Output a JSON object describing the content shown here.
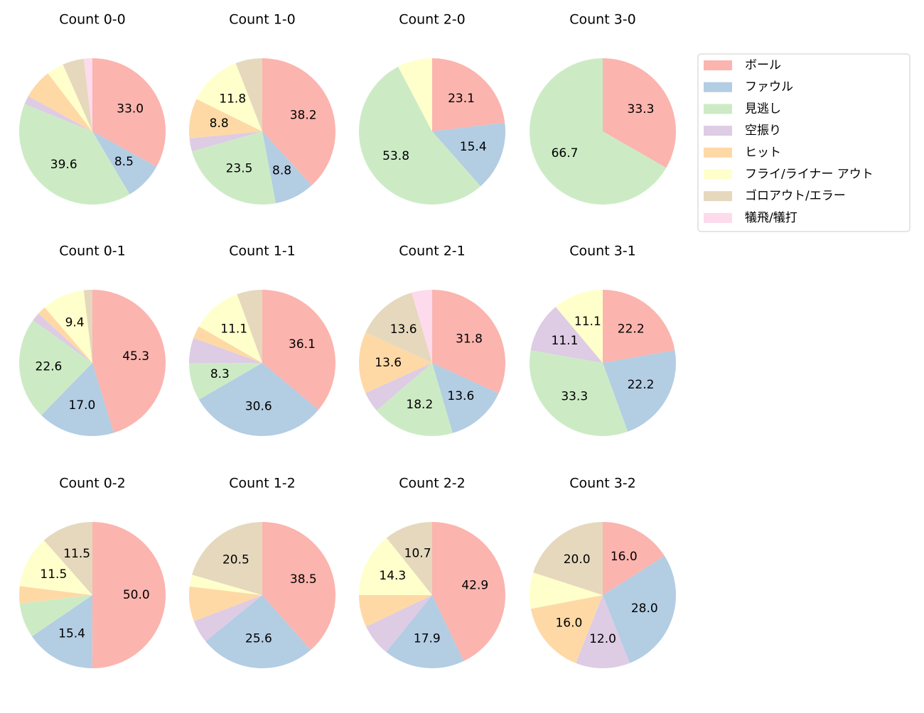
{
  "legend": {
    "labels": [
      "ボール",
      "ファウル",
      "見逃し",
      "空振り",
      "ヒット",
      "フライ/ライナー アウト",
      "ゴロアウト/エラー",
      "犠飛/犠打"
    ],
    "colors": [
      "#fbb4ae",
      "#b3cde3",
      "#ccebc5",
      "#decbe4",
      "#fed9a6",
      "#ffffcc",
      "#e5d8bd",
      "#fddaec"
    ]
  },
  "chart_data": [
    {
      "type": "pie",
      "title": "Count 0-0",
      "values": [
        33.0,
        8.5,
        39.6,
        1.9,
        6.6,
        3.8,
        4.7,
        1.9
      ],
      "value_labels": [
        "33.0",
        "8.5",
        "39.6",
        null,
        null,
        null,
        null,
        null
      ]
    },
    {
      "type": "pie",
      "title": "Count 1-0",
      "values": [
        38.2,
        8.8,
        23.5,
        2.9,
        8.8,
        11.8,
        5.9,
        0
      ],
      "value_labels": [
        "38.2",
        "8.8",
        "23.5",
        null,
        "8.8",
        "11.8",
        null,
        null
      ]
    },
    {
      "type": "pie",
      "title": "Count 2-0",
      "values": [
        23.1,
        15.4,
        53.8,
        0,
        0,
        7.7,
        0,
        0
      ],
      "value_labels": [
        "23.1",
        "15.4",
        "53.8",
        null,
        null,
        null,
        null,
        null
      ]
    },
    {
      "type": "pie",
      "title": "Count 3-0",
      "values": [
        33.3,
        0,
        66.7,
        0,
        0,
        0,
        0,
        0
      ],
      "value_labels": [
        "33.3",
        null,
        "66.7",
        null,
        null,
        null,
        null,
        null
      ]
    },
    {
      "type": "pie",
      "title": "Count 0-1",
      "values": [
        45.3,
        17.0,
        22.6,
        1.9,
        1.9,
        9.4,
        1.9,
        0
      ],
      "value_labels": [
        "45.3",
        "17.0",
        "22.6",
        null,
        null,
        "9.4",
        null,
        null
      ]
    },
    {
      "type": "pie",
      "title": "Count 1-1",
      "values": [
        36.1,
        30.6,
        8.3,
        5.6,
        2.8,
        11.1,
        5.6,
        0
      ],
      "value_labels": [
        "36.1",
        "30.6",
        "8.3",
        null,
        null,
        "11.1",
        null,
        null
      ]
    },
    {
      "type": "pie",
      "title": "Count 2-1",
      "values": [
        31.8,
        13.6,
        18.2,
        4.5,
        13.6,
        0,
        13.6,
        4.5
      ],
      "value_labels": [
        "31.8",
        "13.6",
        "18.2",
        null,
        "13.6",
        null,
        "13.6",
        null
      ]
    },
    {
      "type": "pie",
      "title": "Count 3-1",
      "values": [
        22.2,
        22.2,
        33.3,
        11.1,
        0,
        11.1,
        0,
        0
      ],
      "value_labels": [
        "22.2",
        "22.2",
        "33.3",
        "11.1",
        null,
        "11.1",
        null,
        null
      ]
    },
    {
      "type": "pie",
      "title": "Count 0-2",
      "values": [
        50.0,
        15.4,
        7.7,
        0,
        3.8,
        11.5,
        11.5,
        0
      ],
      "value_labels": [
        "50.0",
        "15.4",
        null,
        null,
        null,
        "11.5",
        "11.5",
        null
      ]
    },
    {
      "type": "pie",
      "title": "Count 1-2",
      "values": [
        38.5,
        25.6,
        0,
        5.1,
        7.7,
        2.6,
        20.5,
        0
      ],
      "value_labels": [
        "38.5",
        "25.6",
        null,
        null,
        null,
        null,
        "20.5",
        null
      ]
    },
    {
      "type": "pie",
      "title": "Count 2-2",
      "values": [
        42.9,
        17.9,
        0,
        7.1,
        7.1,
        14.3,
        10.7,
        0
      ],
      "value_labels": [
        "42.9",
        "17.9",
        null,
        null,
        null,
        "14.3",
        "10.7",
        null
      ]
    },
    {
      "type": "pie",
      "title": "Count 3-2",
      "values": [
        16.0,
        28.0,
        0,
        12.0,
        16.0,
        8.0,
        20.0,
        0
      ],
      "value_labels": [
        "16.0",
        "28.0",
        null,
        "12.0",
        "16.0",
        null,
        "20.0",
        null
      ]
    }
  ]
}
